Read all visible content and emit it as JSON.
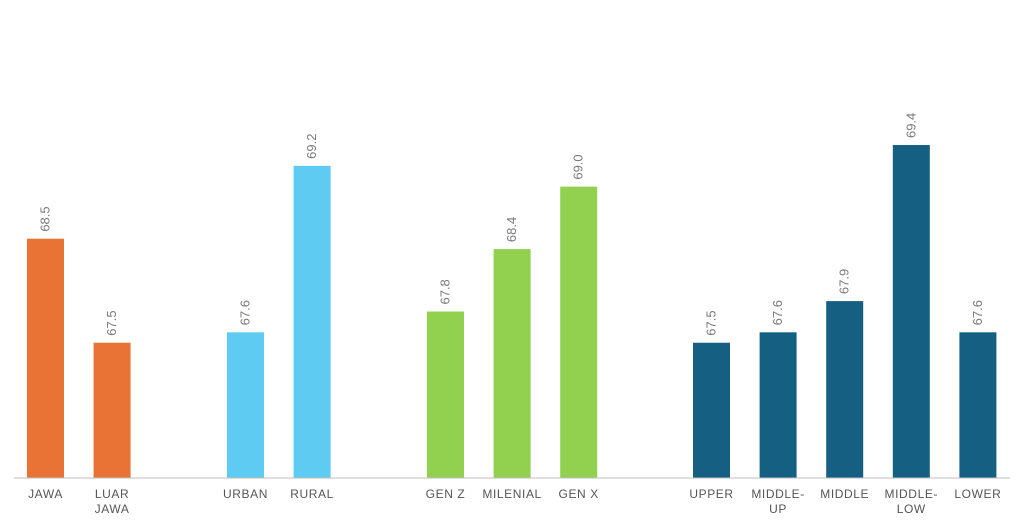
{
  "chart_data": {
    "type": "bar",
    "ylim": [
      66.2,
      69.9
    ],
    "grid": false,
    "legend": "none",
    "groups": [
      {
        "color": "#E87335",
        "bars": [
          {
            "label": [
              "JAWA"
            ],
            "value": 68.5,
            "value_label": "68.5"
          },
          {
            "label": [
              "LUAR",
              "JAWA"
            ],
            "value": 67.5,
            "value_label": "67.5"
          }
        ]
      },
      {
        "color": "#5ECBF2",
        "bars": [
          {
            "label": [
              "URBAN"
            ],
            "value": 67.6,
            "value_label": "67.6"
          },
          {
            "label": [
              "RURAL"
            ],
            "value": 69.2,
            "value_label": "69.2"
          }
        ]
      },
      {
        "color": "#92D050",
        "bars": [
          {
            "label": [
              "GEN Z"
            ],
            "value": 67.8,
            "value_label": "67.8"
          },
          {
            "label": [
              "MILENIAL"
            ],
            "value": 68.4,
            "value_label": "68.4"
          },
          {
            "label": [
              "GEN X"
            ],
            "value": 69.0,
            "value_label": "69.0"
          }
        ]
      },
      {
        "color": "#155F82",
        "bars": [
          {
            "label": [
              "UPPER"
            ],
            "value": 67.5,
            "value_label": "67.5"
          },
          {
            "label": [
              "MIDDLE-",
              "UP"
            ],
            "value": 67.6,
            "value_label": "67.6"
          },
          {
            "label": [
              "MIDDLE"
            ],
            "value": 67.9,
            "value_label": "67.9"
          },
          {
            "label": [
              "MIDDLE-",
              "LOW"
            ],
            "value": 69.4,
            "value_label": "69.4"
          },
          {
            "label": [
              "LOWER"
            ],
            "value": 67.6,
            "value_label": "67.6"
          }
        ]
      }
    ]
  }
}
